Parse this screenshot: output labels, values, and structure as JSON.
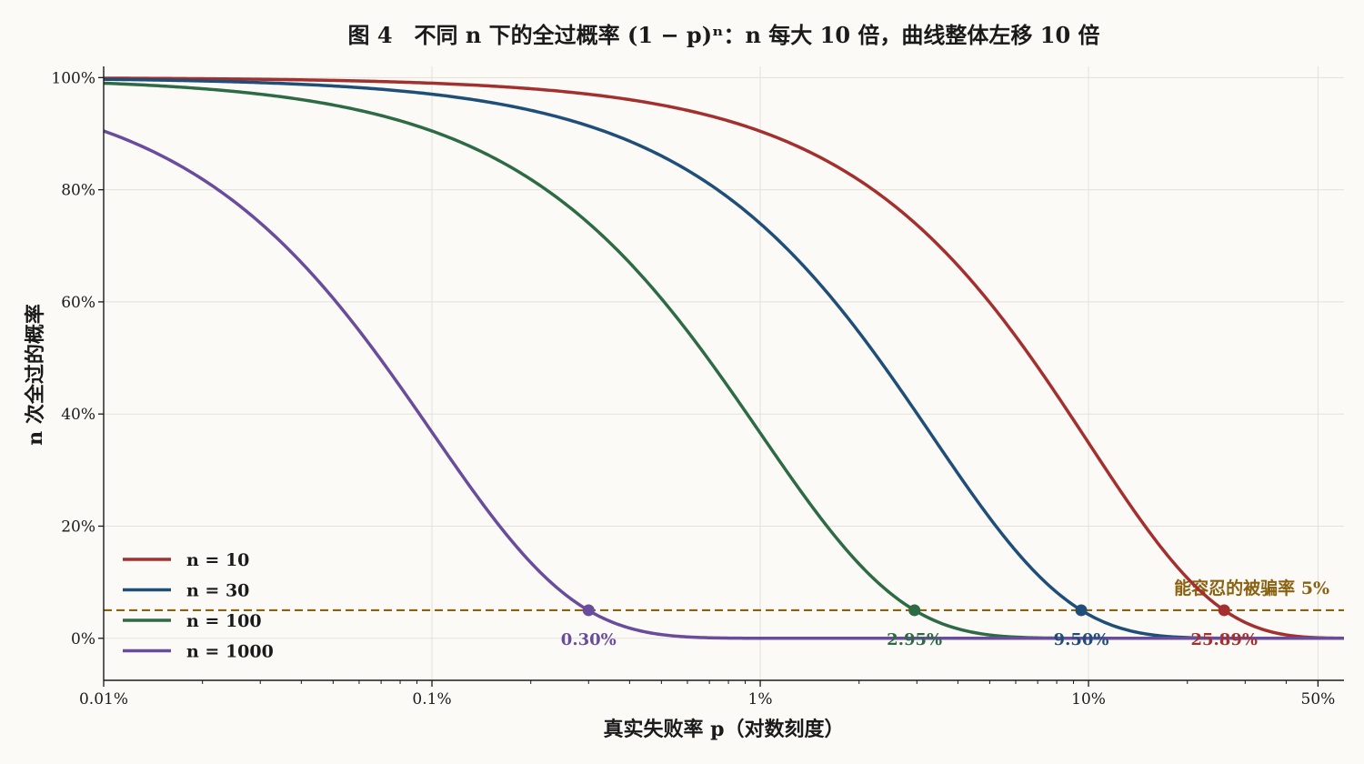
{
  "chart_data": {
    "type": "line",
    "title": "图 4　不同 n 下的全过概率 (1 − p)ⁿ：n 每大 10 倍，曲线整体左移 10 倍",
    "xlabel": "真实失败率 p（对数刻度）",
    "ylabel": "n 次全过的概率",
    "xscale": "log",
    "xlim": [
      0.0001,
      0.6
    ],
    "ylim": [
      -0.075,
      1.02
    ],
    "grid": true,
    "legend_position": "lower-left",
    "x_ticks": [
      {
        "value": 0.0001,
        "label": "0.01%"
      },
      {
        "value": 0.001,
        "label": "0.1%"
      },
      {
        "value": 0.01,
        "label": "1%"
      },
      {
        "value": 0.1,
        "label": "10%"
      },
      {
        "value": 0.5,
        "label": "50%"
      }
    ],
    "y_ticks": [
      {
        "value": 0,
        "label": "0%"
      },
      {
        "value": 0.2,
        "label": "20%"
      },
      {
        "value": 0.4,
        "label": "40%"
      },
      {
        "value": 0.6,
        "label": "60%"
      },
      {
        "value": 0.8,
        "label": "80%"
      },
      {
        "value": 1.0,
        "label": "100%"
      }
    ],
    "series": [
      {
        "name": "n = 10",
        "n": 10,
        "color": "#a3302f",
        "marker": {
          "p": 0.2589,
          "y": 0.05,
          "label": "25.89%"
        }
      },
      {
        "name": "n = 30",
        "n": 30,
        "color": "#1f4e79",
        "marker": {
          "p": 0.095,
          "y": 0.05,
          "label": "9.50%"
        }
      },
      {
        "name": "n = 100",
        "n": 100,
        "color": "#2e6b45",
        "marker": {
          "p": 0.0295,
          "y": 0.05,
          "label": "2.95%"
        }
      },
      {
        "name": "n = 1000",
        "n": 1000,
        "color": "#6a4c9c",
        "marker": {
          "p": 0.003,
          "y": 0.05,
          "label": "0.30%"
        }
      }
    ],
    "threshold": {
      "y": 0.05,
      "label": "能容忍的被骗率 5%",
      "color": "#8a6212"
    }
  }
}
